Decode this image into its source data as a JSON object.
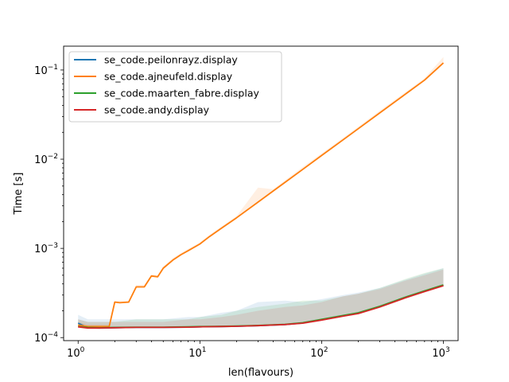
{
  "chart_data": {
    "type": "line",
    "xscale": "log",
    "yscale": "log",
    "xlabel": "len(flavours)",
    "ylabel": "Time [s]",
    "xlim": [
      0.76,
      1320
    ],
    "ylim": [
      9.25e-05,
      0.185
    ],
    "x_ticks": [
      {
        "value": 1,
        "base": "10",
        "exp": "0"
      },
      {
        "value": 10,
        "base": "10",
        "exp": "1"
      },
      {
        "value": 100,
        "base": "10",
        "exp": "2"
      },
      {
        "value": 1000,
        "base": "10",
        "exp": "3"
      }
    ],
    "y_ticks": [
      {
        "value": 0.0001,
        "base": "10",
        "exp": "−4"
      },
      {
        "value": 0.001,
        "base": "10",
        "exp": "−3"
      },
      {
        "value": 0.01,
        "base": "10",
        "exp": "−2"
      },
      {
        "value": 0.1,
        "base": "10",
        "exp": "−1"
      }
    ],
    "legend": {
      "placement": "top-left"
    },
    "grid": false,
    "series": [
      {
        "name": "se_code.peilonrayz.display",
        "color": "#1f77b4",
        "x": [
          1,
          1.2,
          1.5,
          2,
          3,
          5,
          8,
          10,
          15,
          20,
          30,
          50,
          70,
          100,
          150,
          200,
          300,
          500,
          700,
          1000
        ],
        "y": [
          0.000145,
          0.000129,
          0.000128,
          0.000129,
          0.00013,
          0.00013,
          0.000131,
          0.000132,
          0.000133,
          0.000134,
          0.000136,
          0.00014,
          0.000146,
          0.000158,
          0.000175,
          0.000188,
          0.000222,
          0.000285,
          0.00033,
          0.000385
        ],
        "band": [
          0.00018,
          0.00016,
          0.00016,
          0.00016,
          0.00016,
          0.00016,
          0.00017,
          0.00017,
          0.00019,
          0.0002,
          0.00025,
          0.00026,
          0.00025,
          0.00027,
          0.0003,
          0.00032,
          0.00036,
          0.00045,
          0.00052,
          0.0006
        ]
      },
      {
        "name": "se_code.ajneufeld.display",
        "color": "#ff7f0e",
        "x": [
          1,
          1.2,
          1.5,
          1.8,
          2,
          2.2,
          2.6,
          3,
          3.5,
          4,
          4.5,
          5,
          6,
          7,
          8,
          10,
          12,
          15,
          20,
          30,
          40,
          50,
          70,
          100,
          150,
          200,
          300,
          500,
          700,
          1000
        ],
        "y": [
          0.000138,
          0.000133,
          0.000133,
          0.000133,
          0.00025,
          0.000246,
          0.00025,
          0.00037,
          0.00037,
          0.00049,
          0.00048,
          0.0006,
          0.00074,
          0.00085,
          0.00094,
          0.00112,
          0.00136,
          0.00168,
          0.0022,
          0.0033,
          0.0044,
          0.0055,
          0.0077,
          0.011,
          0.0165,
          0.022,
          0.033,
          0.055,
          0.077,
          0.12
        ],
        "band": [
          0.00015,
          0.00014,
          0.00014,
          0.00014,
          0.00026,
          0.00026,
          0.00026,
          0.00039,
          0.00039,
          0.00051,
          0.0005,
          0.00063,
          0.00078,
          0.00089,
          0.00099,
          0.00117,
          0.00142,
          0.00176,
          0.0023,
          0.0048,
          0.0046,
          0.0058,
          0.0082,
          0.0116,
          0.0174,
          0.0232,
          0.035,
          0.058,
          0.081,
          0.14
        ]
      },
      {
        "name": "se_code.maarten_fabre.display",
        "color": "#2ca02c",
        "x": [
          1,
          1.2,
          1.5,
          2,
          3,
          5,
          8,
          10,
          15,
          20,
          30,
          50,
          70,
          100,
          150,
          200,
          300,
          500,
          700,
          1000
        ],
        "y": [
          0.000133,
          0.00013,
          0.000129,
          0.00013,
          0.000131,
          0.000131,
          0.000132,
          0.000133,
          0.000134,
          0.000135,
          0.000137,
          0.000141,
          0.000147,
          0.00016,
          0.000177,
          0.00019,
          0.000224,
          0.000288,
          0.000334,
          0.00039
        ],
        "band": [
          0.00016,
          0.00015,
          0.00015,
          0.00015,
          0.00016,
          0.00016,
          0.00016,
          0.00017,
          0.00018,
          0.0002,
          0.00022,
          0.00024,
          0.00026,
          0.00026,
          0.00029,
          0.00031,
          0.00036,
          0.00046,
          0.00053,
          0.0006
        ]
      },
      {
        "name": "se_code.andy.display",
        "color": "#d62728",
        "x": [
          1,
          1.2,
          1.5,
          2,
          3,
          5,
          8,
          10,
          15,
          20,
          30,
          50,
          70,
          100,
          150,
          200,
          300,
          500,
          700,
          1000
        ],
        "y": [
          0.000132,
          0.000128,
          0.000128,
          0.000129,
          0.00013,
          0.00013,
          0.000131,
          0.000132,
          0.000133,
          0.000134,
          0.000136,
          0.00014,
          0.000145,
          0.000157,
          0.000174,
          0.000186,
          0.00022,
          0.000283,
          0.000328,
          0.000382
        ],
        "band": [
          0.00016,
          0.00015,
          0.00015,
          0.00015,
          0.00015,
          0.00015,
          0.00016,
          0.00016,
          0.00017,
          0.00018,
          0.0002,
          0.00022,
          0.00023,
          0.00025,
          0.00029,
          0.00031,
          0.00035,
          0.00044,
          0.0005,
          0.00058
        ]
      }
    ]
  }
}
